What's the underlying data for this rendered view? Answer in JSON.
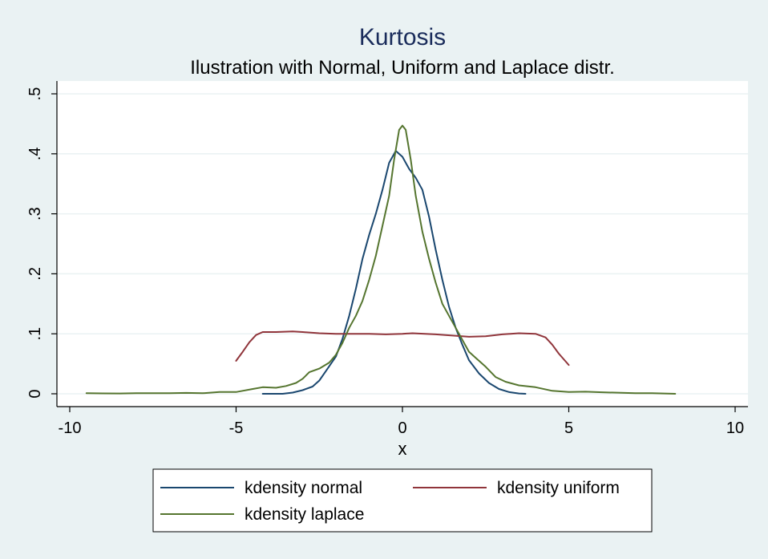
{
  "chart_data": {
    "type": "line",
    "title": "Kurtosis",
    "subtitle": "Ilustration with Normal, Uniform and Laplace distr.",
    "xlabel": "x",
    "ylabel": "",
    "xlim": [
      -10,
      10
    ],
    "ylim": [
      0,
      0.5
    ],
    "x_ticks": [
      -10,
      -5,
      0,
      5,
      10
    ],
    "x_tick_labels": [
      "-10",
      "-5",
      "0",
      "5",
      "10"
    ],
    "y_ticks": [
      0,
      0.1,
      0.2,
      0.3,
      0.4,
      0.5
    ],
    "y_tick_labels": [
      "0",
      ".1",
      ".2",
      ".3",
      ".4",
      ".5"
    ],
    "grid": true,
    "legend_position": "bottom",
    "series": [
      {
        "name": "kdensity normal",
        "color": "#1a476f",
        "points": [
          [
            -4.2,
            0.0
          ],
          [
            -3.6,
            0.0
          ],
          [
            -3.3,
            0.002
          ],
          [
            -3.0,
            0.006
          ],
          [
            -2.7,
            0.012
          ],
          [
            -2.5,
            0.022
          ],
          [
            -2.3,
            0.038
          ],
          [
            -2.0,
            0.062
          ],
          [
            -1.8,
            0.092
          ],
          [
            -1.6,
            0.13
          ],
          [
            -1.4,
            0.175
          ],
          [
            -1.2,
            0.225
          ],
          [
            -1.0,
            0.265
          ],
          [
            -0.8,
            0.3
          ],
          [
            -0.6,
            0.34
          ],
          [
            -0.4,
            0.385
          ],
          [
            -0.2,
            0.405
          ],
          [
            0.0,
            0.395
          ],
          [
            0.2,
            0.375
          ],
          [
            0.4,
            0.36
          ],
          [
            0.6,
            0.34
          ],
          [
            0.8,
            0.295
          ],
          [
            1.0,
            0.24
          ],
          [
            1.2,
            0.19
          ],
          [
            1.4,
            0.145
          ],
          [
            1.6,
            0.11
          ],
          [
            1.8,
            0.082
          ],
          [
            2.0,
            0.056
          ],
          [
            2.3,
            0.034
          ],
          [
            2.6,
            0.018
          ],
          [
            2.9,
            0.008
          ],
          [
            3.2,
            0.003
          ],
          [
            3.5,
            0.0005
          ],
          [
            3.7,
            0.0
          ]
        ]
      },
      {
        "name": "kdensity uniform",
        "color": "#90353b",
        "points": [
          [
            -5.0,
            0.055
          ],
          [
            -4.8,
            0.07
          ],
          [
            -4.6,
            0.086
          ],
          [
            -4.4,
            0.098
          ],
          [
            -4.2,
            0.103
          ],
          [
            -3.8,
            0.103
          ],
          [
            -3.3,
            0.104
          ],
          [
            -3.0,
            0.103
          ],
          [
            -2.5,
            0.101
          ],
          [
            -2.0,
            0.1
          ],
          [
            -1.5,
            0.1
          ],
          [
            -1.0,
            0.1
          ],
          [
            -0.5,
            0.099
          ],
          [
            0.0,
            0.1
          ],
          [
            0.3,
            0.101
          ],
          [
            1.0,
            0.099
          ],
          [
            1.5,
            0.097
          ],
          [
            2.0,
            0.095
          ],
          [
            2.5,
            0.096
          ],
          [
            3.0,
            0.099
          ],
          [
            3.5,
            0.101
          ],
          [
            4.0,
            0.1
          ],
          [
            4.3,
            0.094
          ],
          [
            4.5,
            0.082
          ],
          [
            4.7,
            0.067
          ],
          [
            5.0,
            0.048
          ]
        ]
      },
      {
        "name": "kdensity laplace",
        "color": "#55752f",
        "points": [
          [
            -9.5,
            0.001
          ],
          [
            -8.5,
            0.0005
          ],
          [
            -8.0,
            0.001
          ],
          [
            -7.0,
            0.001
          ],
          [
            -6.5,
            0.0015
          ],
          [
            -6.0,
            0.001
          ],
          [
            -5.5,
            0.003
          ],
          [
            -5.0,
            0.003
          ],
          [
            -4.5,
            0.008
          ],
          [
            -4.2,
            0.011
          ],
          [
            -3.8,
            0.01
          ],
          [
            -3.5,
            0.013
          ],
          [
            -3.2,
            0.018
          ],
          [
            -3.0,
            0.025
          ],
          [
            -2.8,
            0.036
          ],
          [
            -2.5,
            0.042
          ],
          [
            -2.2,
            0.052
          ],
          [
            -2.0,
            0.065
          ],
          [
            -1.8,
            0.085
          ],
          [
            -1.6,
            0.11
          ],
          [
            -1.4,
            0.13
          ],
          [
            -1.2,
            0.155
          ],
          [
            -1.0,
            0.19
          ],
          [
            -0.8,
            0.23
          ],
          [
            -0.6,
            0.28
          ],
          [
            -0.4,
            0.33
          ],
          [
            -0.25,
            0.39
          ],
          [
            -0.1,
            0.44
          ],
          [
            0.0,
            0.447
          ],
          [
            0.1,
            0.44
          ],
          [
            0.25,
            0.39
          ],
          [
            0.4,
            0.33
          ],
          [
            0.6,
            0.27
          ],
          [
            0.8,
            0.225
          ],
          [
            1.0,
            0.185
          ],
          [
            1.2,
            0.15
          ],
          [
            1.4,
            0.13
          ],
          [
            1.6,
            0.11
          ],
          [
            1.8,
            0.09
          ],
          [
            2.0,
            0.07
          ],
          [
            2.2,
            0.06
          ],
          [
            2.5,
            0.045
          ],
          [
            2.8,
            0.028
          ],
          [
            3.1,
            0.02
          ],
          [
            3.5,
            0.014
          ],
          [
            4.0,
            0.011
          ],
          [
            4.5,
            0.005
          ],
          [
            5.0,
            0.003
          ],
          [
            5.5,
            0.0035
          ],
          [
            6.0,
            0.0025
          ],
          [
            7.0,
            0.001
          ],
          [
            7.5,
            0.001
          ],
          [
            8.2,
            0.0
          ]
        ]
      }
    ]
  }
}
